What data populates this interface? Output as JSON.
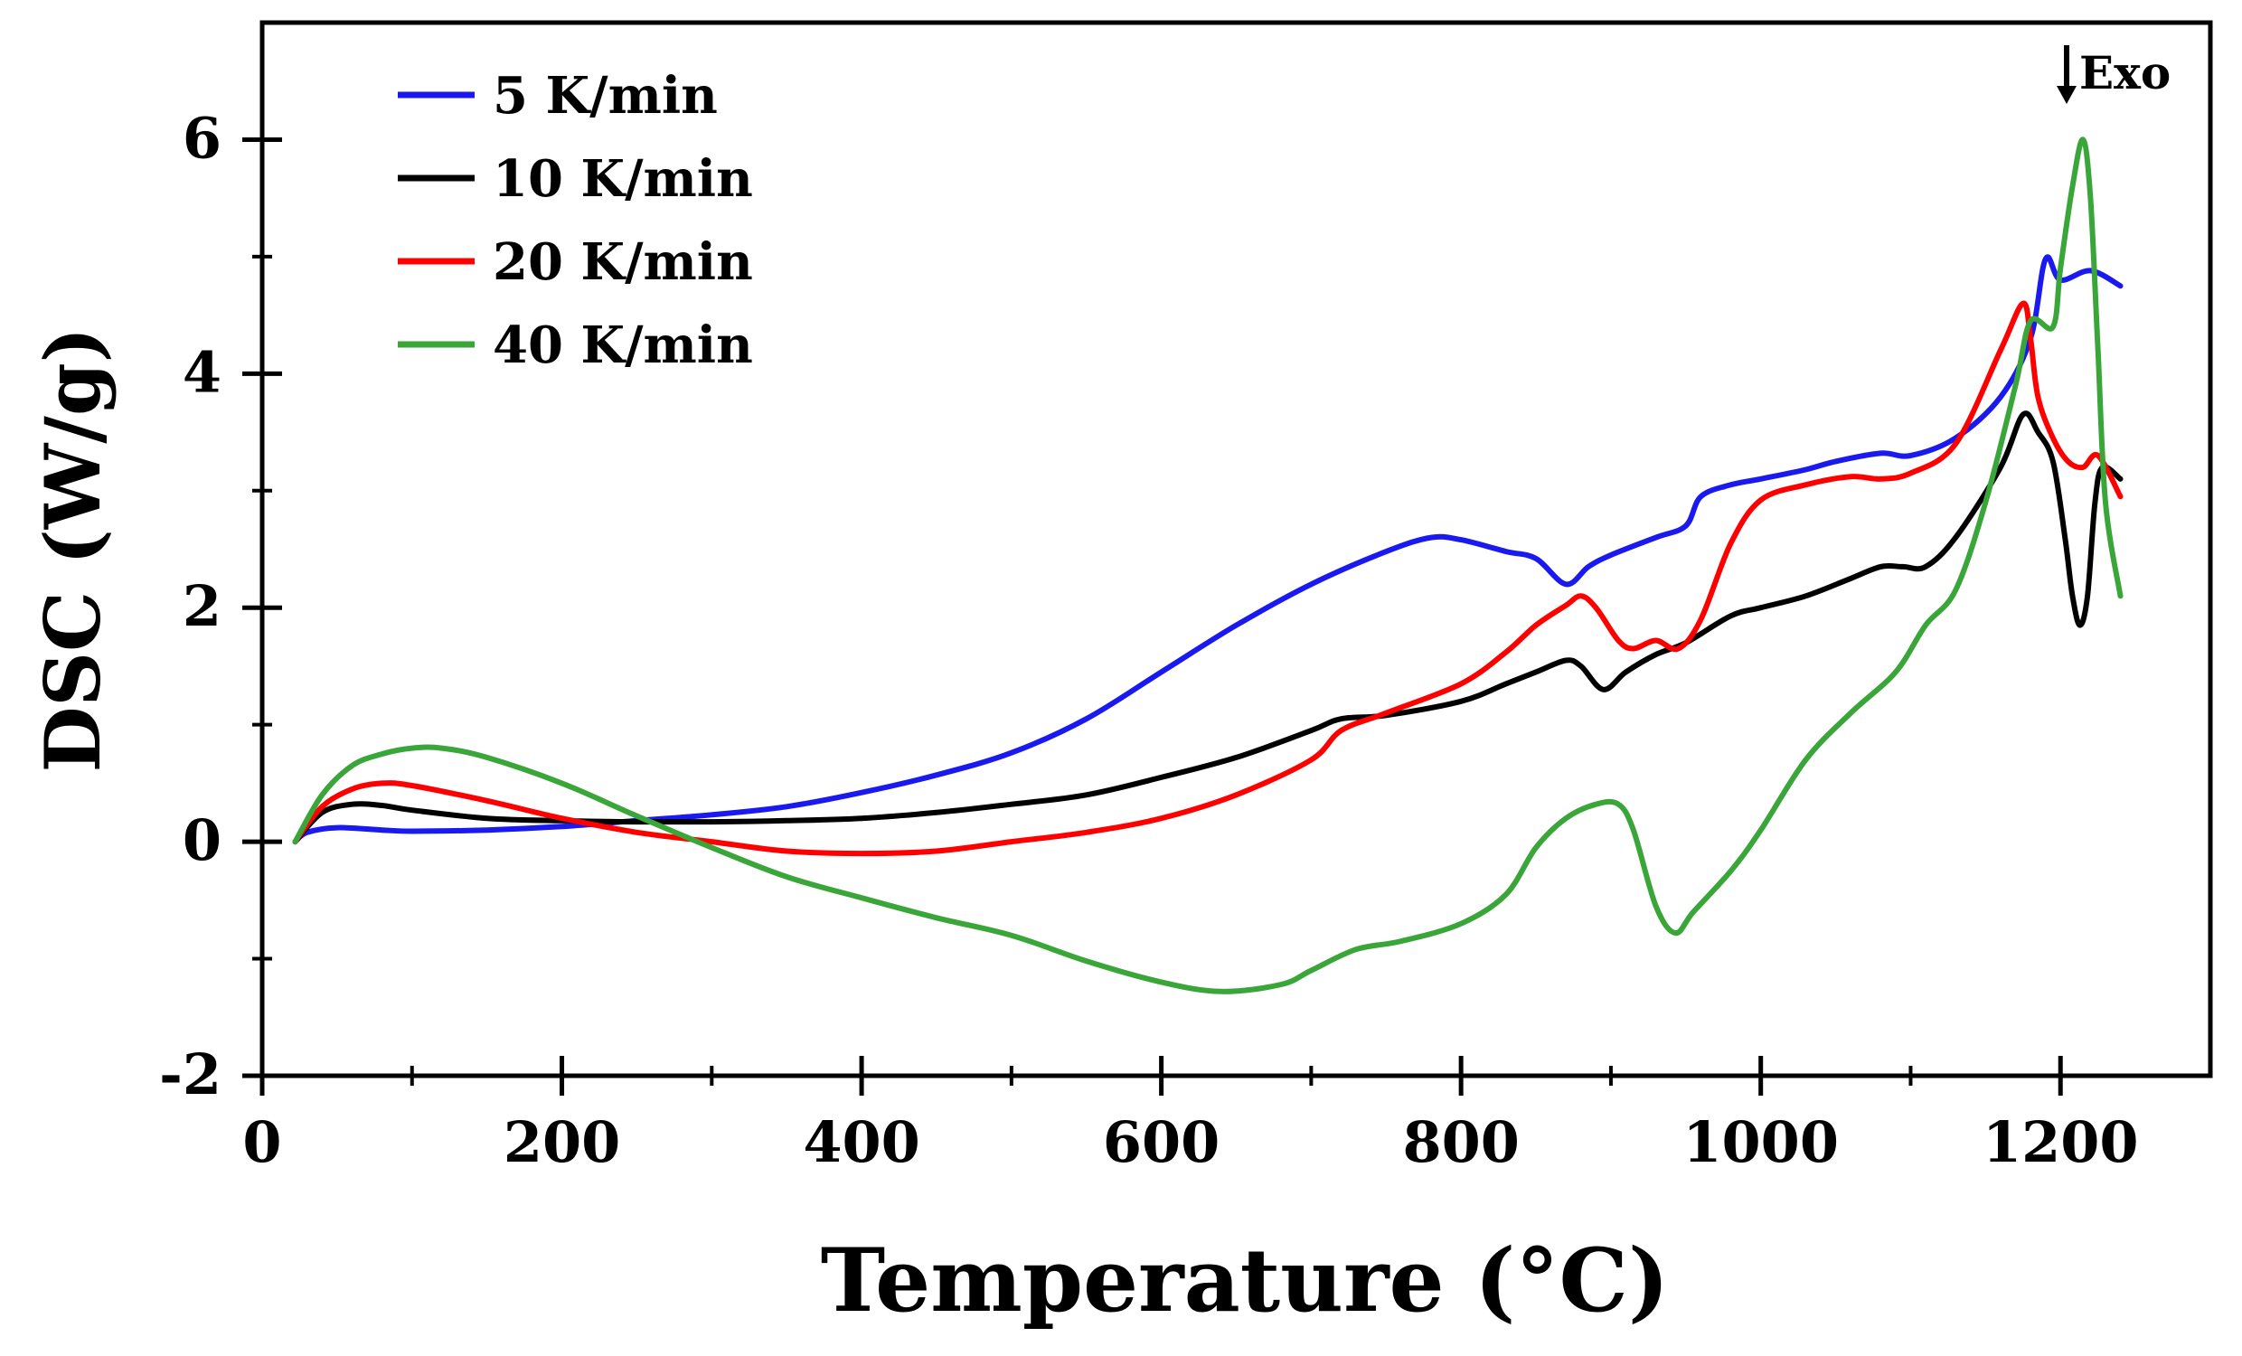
{
  "chart_data": {
    "type": "line",
    "xlabel": "Temperature (°C)",
    "ylabel": "DSC (W/g)",
    "xlim": [
      0,
      1300
    ],
    "ylim": [
      -2,
      7
    ],
    "x_ticks": [
      0,
      200,
      400,
      600,
      800,
      1000,
      1200
    ],
    "x_tick_labels": [
      "0",
      "200",
      "400",
      "600",
      "800",
      "1000",
      "1200"
    ],
    "x_minor_ticks": [
      100,
      300,
      500,
      700,
      900,
      1100
    ],
    "y_ticks": [
      -2,
      0,
      2,
      4,
      6
    ],
    "y_tick_labels": [
      "-2",
      "0",
      "2",
      "4",
      "6"
    ],
    "y_minor_ticks": [
      -1,
      1,
      3,
      5
    ],
    "annotation": {
      "text": "Exo",
      "x": 1200,
      "y": 6.55,
      "arrow": "down"
    },
    "legend": {
      "position": "top-left"
    },
    "series": [
      {
        "name": "5 K/min",
        "color": "#1a1af0",
        "points": [
          [
            22,
            0
          ],
          [
            30,
            0.08
          ],
          [
            50,
            0.12
          ],
          [
            80,
            0.1
          ],
          [
            100,
            0.09
          ],
          [
            150,
            0.1
          ],
          [
            200,
            0.13
          ],
          [
            250,
            0.18
          ],
          [
            300,
            0.23
          ],
          [
            350,
            0.3
          ],
          [
            400,
            0.42
          ],
          [
            450,
            0.57
          ],
          [
            500,
            0.76
          ],
          [
            550,
            1.05
          ],
          [
            600,
            1.45
          ],
          [
            650,
            1.85
          ],
          [
            700,
            2.2
          ],
          [
            750,
            2.48
          ],
          [
            780,
            2.6
          ],
          [
            800,
            2.58
          ],
          [
            830,
            2.48
          ],
          [
            850,
            2.42
          ],
          [
            870,
            2.2
          ],
          [
            885,
            2.35
          ],
          [
            900,
            2.45
          ],
          [
            930,
            2.6
          ],
          [
            950,
            2.7
          ],
          [
            960,
            2.95
          ],
          [
            980,
            3.05
          ],
          [
            1000,
            3.1
          ],
          [
            1030,
            3.18
          ],
          [
            1050,
            3.25
          ],
          [
            1080,
            3.32
          ],
          [
            1100,
            3.3
          ],
          [
            1130,
            3.45
          ],
          [
            1160,
            3.8
          ],
          [
            1180,
            4.3
          ],
          [
            1190,
            4.98
          ],
          [
            1200,
            4.8
          ],
          [
            1220,
            4.88
          ],
          [
            1240,
            4.75
          ]
        ]
      },
      {
        "name": "10 K/min",
        "color": "#000000",
        "points": [
          [
            22,
            0
          ],
          [
            40,
            0.25
          ],
          [
            60,
            0.32
          ],
          [
            80,
            0.31
          ],
          [
            100,
            0.27
          ],
          [
            150,
            0.2
          ],
          [
            200,
            0.18
          ],
          [
            250,
            0.17
          ],
          [
            300,
            0.17
          ],
          [
            350,
            0.18
          ],
          [
            400,
            0.2
          ],
          [
            450,
            0.25
          ],
          [
            500,
            0.32
          ],
          [
            550,
            0.4
          ],
          [
            600,
            0.55
          ],
          [
            650,
            0.72
          ],
          [
            700,
            0.95
          ],
          [
            720,
            1.05
          ],
          [
            750,
            1.08
          ],
          [
            800,
            1.2
          ],
          [
            830,
            1.35
          ],
          [
            850,
            1.45
          ],
          [
            870,
            1.55
          ],
          [
            880,
            1.5
          ],
          [
            895,
            1.3
          ],
          [
            910,
            1.45
          ],
          [
            930,
            1.6
          ],
          [
            950,
            1.7
          ],
          [
            980,
            1.93
          ],
          [
            1000,
            2.0
          ],
          [
            1030,
            2.1
          ],
          [
            1060,
            2.25
          ],
          [
            1080,
            2.35
          ],
          [
            1095,
            2.35
          ],
          [
            1110,
            2.35
          ],
          [
            1130,
            2.6
          ],
          [
            1160,
            3.2
          ],
          [
            1175,
            3.65
          ],
          [
            1185,
            3.5
          ],
          [
            1195,
            3.25
          ],
          [
            1203,
            2.6
          ],
          [
            1208,
            2.1
          ],
          [
            1213,
            1.85
          ],
          [
            1218,
            2.1
          ],
          [
            1223,
            2.9
          ],
          [
            1228,
            3.2
          ],
          [
            1240,
            3.1
          ]
        ]
      },
      {
        "name": "20 K/min",
        "color": "#ff0000",
        "points": [
          [
            22,
            0
          ],
          [
            40,
            0.3
          ],
          [
            60,
            0.45
          ],
          [
            80,
            0.5
          ],
          [
            100,
            0.48
          ],
          [
            150,
            0.35
          ],
          [
            200,
            0.2
          ],
          [
            250,
            0.08
          ],
          [
            300,
            0
          ],
          [
            350,
            -0.08
          ],
          [
            400,
            -0.1
          ],
          [
            450,
            -0.08
          ],
          [
            500,
            0
          ],
          [
            550,
            0.08
          ],
          [
            600,
            0.2
          ],
          [
            650,
            0.4
          ],
          [
            700,
            0.7
          ],
          [
            720,
            0.95
          ],
          [
            750,
            1.1
          ],
          [
            800,
            1.35
          ],
          [
            830,
            1.62
          ],
          [
            850,
            1.85
          ],
          [
            870,
            2.02
          ],
          [
            880,
            2.1
          ],
          [
            890,
            2.0
          ],
          [
            905,
            1.72
          ],
          [
            915,
            1.65
          ],
          [
            930,
            1.72
          ],
          [
            945,
            1.65
          ],
          [
            960,
            1.9
          ],
          [
            980,
            2.55
          ],
          [
            1000,
            2.92
          ],
          [
            1030,
            3.05
          ],
          [
            1060,
            3.12
          ],
          [
            1080,
            3.1
          ],
          [
            1100,
            3.15
          ],
          [
            1130,
            3.4
          ],
          [
            1160,
            4.2
          ],
          [
            1175,
            4.6
          ],
          [
            1180,
            4.3
          ],
          [
            1185,
            3.8
          ],
          [
            1195,
            3.45
          ],
          [
            1205,
            3.25
          ],
          [
            1215,
            3.2
          ],
          [
            1225,
            3.3
          ],
          [
            1240,
            2.95
          ]
        ]
      },
      {
        "name": "40 K/min",
        "color": "#3aa63a",
        "points": [
          [
            22,
            0
          ],
          [
            40,
            0.4
          ],
          [
            60,
            0.65
          ],
          [
            80,
            0.75
          ],
          [
            100,
            0.8
          ],
          [
            120,
            0.8
          ],
          [
            150,
            0.72
          ],
          [
            200,
            0.5
          ],
          [
            250,
            0.22
          ],
          [
            300,
            -0.05
          ],
          [
            350,
            -0.3
          ],
          [
            400,
            -0.48
          ],
          [
            450,
            -0.65
          ],
          [
            500,
            -0.8
          ],
          [
            550,
            -1.02
          ],
          [
            600,
            -1.2
          ],
          [
            640,
            -1.28
          ],
          [
            680,
            -1.22
          ],
          [
            700,
            -1.1
          ],
          [
            730,
            -0.92
          ],
          [
            760,
            -0.85
          ],
          [
            800,
            -0.7
          ],
          [
            830,
            -0.45
          ],
          [
            850,
            -0.05
          ],
          [
            870,
            0.2
          ],
          [
            890,
            0.32
          ],
          [
            905,
            0.32
          ],
          [
            915,
            0.1
          ],
          [
            930,
            -0.55
          ],
          [
            943,
            -0.78
          ],
          [
            955,
            -0.6
          ],
          [
            980,
            -0.25
          ],
          [
            1000,
            0.1
          ],
          [
            1030,
            0.7
          ],
          [
            1060,
            1.1
          ],
          [
            1090,
            1.45
          ],
          [
            1110,
            1.85
          ],
          [
            1130,
            2.15
          ],
          [
            1150,
            2.9
          ],
          [
            1170,
            3.9
          ],
          [
            1180,
            4.45
          ],
          [
            1195,
            4.4
          ],
          [
            1200,
            4.9
          ],
          [
            1208,
            5.6
          ],
          [
            1215,
            6.0
          ],
          [
            1220,
            5.5
          ],
          [
            1225,
            4.2
          ],
          [
            1230,
            2.9
          ],
          [
            1240,
            2.1
          ]
        ]
      }
    ]
  }
}
